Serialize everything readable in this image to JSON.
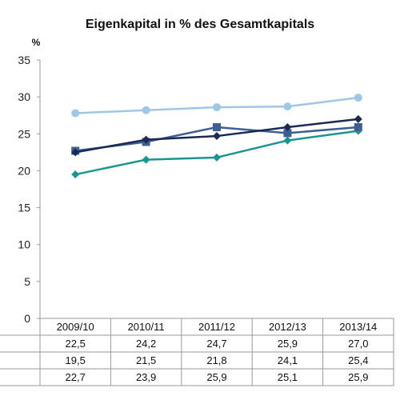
{
  "chart_data": {
    "type": "line",
    "title": "Eigenkapital in % des Gesamtkapitals",
    "ylabel": "%",
    "xlabel": "",
    "ylim": [
      0,
      35
    ],
    "yticks": [
      0,
      5,
      10,
      15,
      20,
      25,
      30,
      35
    ],
    "categories": [
      "2009/10",
      "2010/11",
      "2011/12",
      "2012/13",
      "2013/14"
    ],
    "grid": false,
    "series": [
      {
        "values": [
          22.5,
          24.2,
          24.7,
          25.9,
          27.0
        ],
        "color": "#1b2a55",
        "marker": "diamond",
        "in_table": true
      },
      {
        "values": [
          19.5,
          21.5,
          21.8,
          24.1,
          25.4
        ],
        "color": "#1a9690",
        "marker": "diamond",
        "in_table": true
      },
      {
        "values": [
          22.7,
          23.9,
          25.9,
          25.1,
          25.9
        ],
        "color": "#3d5f95",
        "marker": "square",
        "in_table": true
      },
      {
        "values": [
          27.8,
          28.2,
          28.6,
          28.7,
          29.9
        ],
        "color": "#9fc6e4",
        "marker": "circle",
        "in_table": false
      }
    ],
    "table_rows": [
      [
        "22,5",
        "24,2",
        "24,7",
        "25,9",
        "27,0"
      ],
      [
        "19,5",
        "21,5",
        "21,8",
        "24,1",
        "25,4"
      ],
      [
        "22,7",
        "23,9",
        "25,9",
        "25,1",
        "25,9"
      ]
    ]
  }
}
